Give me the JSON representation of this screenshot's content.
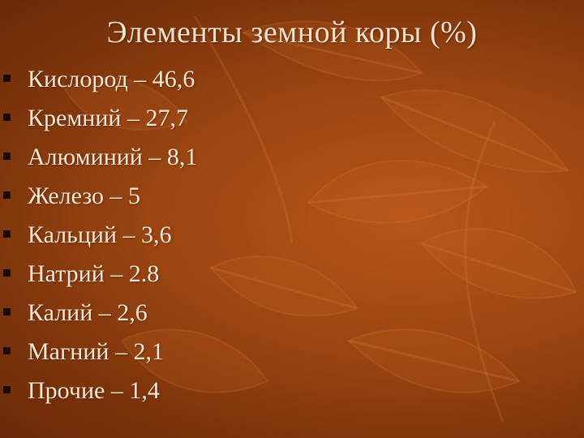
{
  "slide": {
    "title": "Элементы земной коры (%)",
    "items": [
      {
        "text": "Кислород – 46,6"
      },
      {
        "text": "Кремний – 27,7"
      },
      {
        "text": "Алюминий – 8,1"
      },
      {
        "text": "Железо – 5"
      },
      {
        "text": "Кальций – 3,6"
      },
      {
        "text": "Натрий – 2.8"
      },
      {
        "text": "Калий – 2,6"
      },
      {
        "text": "Магний – 2,1"
      },
      {
        "text": "Прочие – 1,4"
      }
    ]
  },
  "colors": {
    "background": "#9a4512",
    "text": "#f2e6d5",
    "bullet": "#1a0a02"
  }
}
